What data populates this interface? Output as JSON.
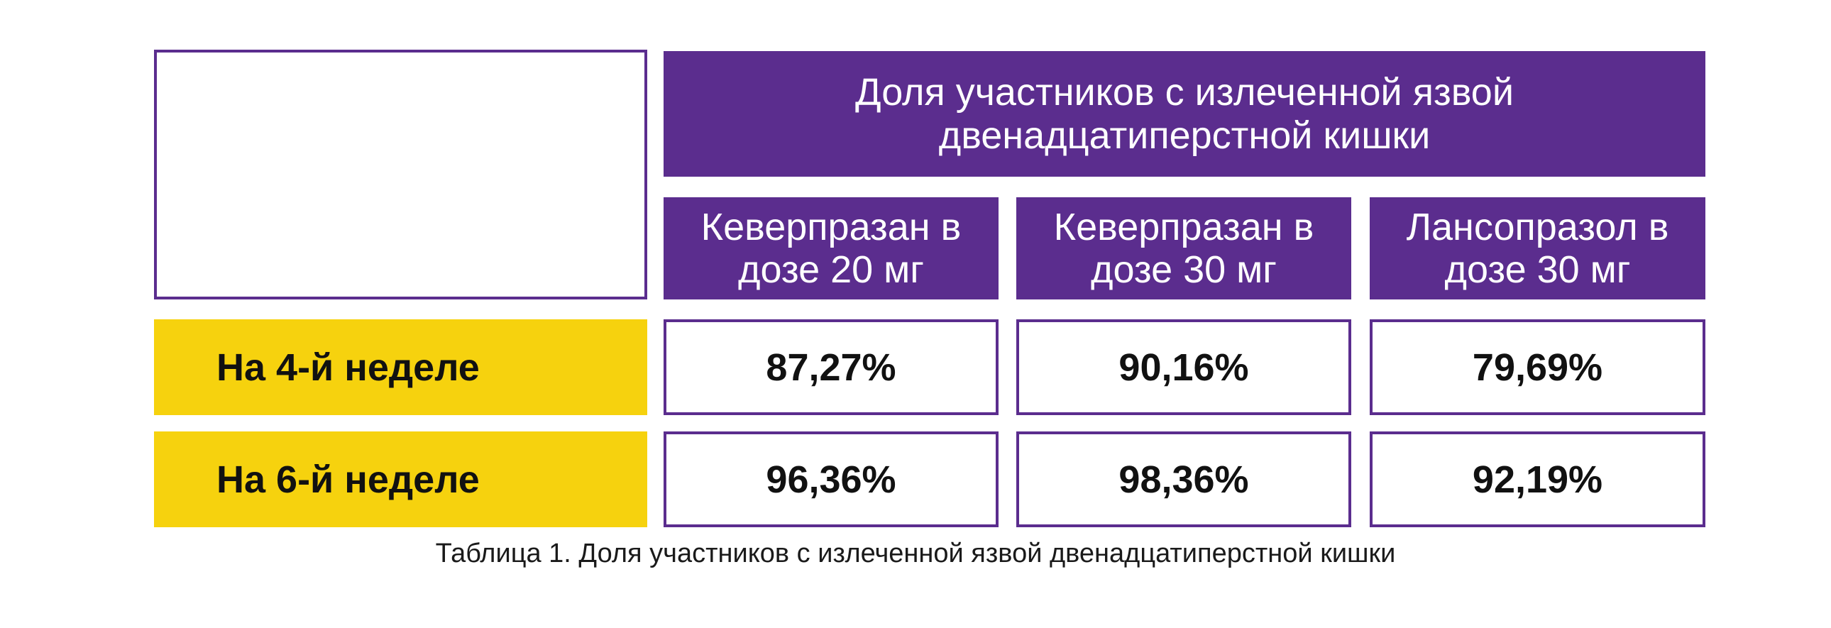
{
  "chart_data": {
    "type": "table",
    "super_header": "Доля участников с излеченной язвой двенадцатиперстной кишки",
    "columns": [
      "Кеверпразан в дозе 20 мг",
      "Кеверпразан в дозе 30 мг",
      "Лансопразол в дозе 30 мг"
    ],
    "rows": [
      {
        "label": "На 4-й неделе",
        "values": [
          "87,27%",
          "90,16%",
          "79,69%"
        ]
      },
      {
        "label": "На 6-й неделе",
        "values": [
          "96,36%",
          "98,36%",
          "92,19%"
        ]
      }
    ],
    "caption": "Таблица 1. Доля участников с излеченной язвой двенадцатиперстной кишки"
  },
  "colors": {
    "purple": "#5b2d8e",
    "yellow": "#f6d20e"
  }
}
